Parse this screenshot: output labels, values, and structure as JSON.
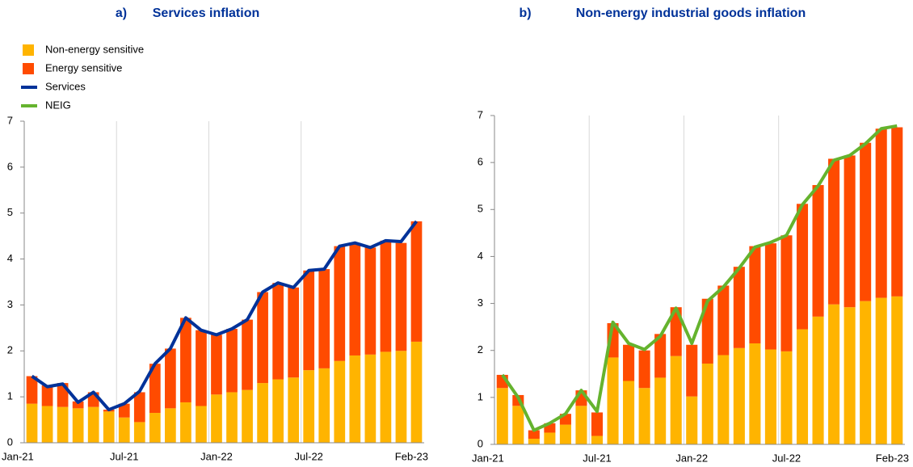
{
  "chart_data": [
    {
      "type": "bar",
      "stacked": true,
      "panel": "a)",
      "title": "Services inflation",
      "categories": [
        "Jan-21",
        null,
        null,
        null,
        null,
        null,
        "Jul-21",
        null,
        null,
        null,
        null,
        null,
        "Jan-22",
        null,
        null,
        null,
        null,
        null,
        "Jul-22",
        null,
        null,
        null,
        null,
        null,
        null,
        "Feb-23"
      ],
      "ylim": [
        0,
        7
      ],
      "yticks": [
        0,
        1,
        2,
        3,
        4,
        5,
        6,
        7
      ],
      "grid": "x",
      "legend": "top left",
      "series": [
        {
          "name": "Non-energy sensitive",
          "type": "bar",
          "color": "#ffb400",
          "values": [
            0.85,
            0.8,
            0.78,
            0.75,
            0.78,
            0.68,
            0.55,
            0.45,
            0.65,
            0.75,
            0.88,
            0.8,
            1.05,
            1.1,
            1.15,
            1.3,
            1.38,
            1.42,
            1.58,
            1.62,
            1.78,
            1.9,
            1.92,
            1.98,
            2.0,
            2.2
          ]
        },
        {
          "name": "Energy sensitive",
          "type": "bar",
          "color": "#ff4b00",
          "values": [
            0.6,
            0.45,
            0.52,
            0.15,
            0.32,
            0.04,
            0.3,
            0.65,
            1.07,
            1.3,
            1.84,
            1.65,
            1.3,
            1.38,
            1.53,
            1.98,
            2.1,
            1.96,
            2.17,
            2.16,
            2.5,
            2.45,
            2.33,
            2.42,
            2.35,
            2.62
          ]
        },
        {
          "name": "Services",
          "type": "line",
          "color": "#003299",
          "values": [
            1.45,
            1.22,
            1.28,
            0.88,
            1.1,
            0.72,
            0.85,
            1.12,
            1.72,
            2.05,
            2.72,
            2.45,
            2.35,
            2.48,
            2.68,
            3.28,
            3.48,
            3.38,
            3.75,
            3.78,
            4.28,
            4.35,
            4.25,
            4.4,
            4.38,
            4.82
          ]
        }
      ]
    },
    {
      "type": "bar",
      "stacked": true,
      "panel": "b)",
      "title": "Non-energy industrial goods inflation",
      "categories": [
        "Jan-21",
        null,
        null,
        null,
        null,
        null,
        "Jul-21",
        null,
        null,
        null,
        null,
        null,
        "Jan-22",
        null,
        null,
        null,
        null,
        null,
        "Jul-22",
        null,
        null,
        null,
        null,
        null,
        null,
        "Feb-23"
      ],
      "ylim": [
        0,
        7
      ],
      "yticks": [
        0,
        1,
        2,
        3,
        4,
        5,
        6,
        7
      ],
      "grid": "x",
      "series": [
        {
          "type": "bar",
          "color": "#ffb400",
          "values": [
            1.2,
            0.82,
            0.12,
            0.25,
            0.42,
            0.82,
            0.18,
            1.85,
            1.35,
            1.2,
            1.42,
            1.88,
            1.02,
            1.72,
            1.9,
            2.05,
            2.15,
            2.02,
            1.98,
            2.45,
            2.72,
            2.98,
            2.92,
            3.05,
            3.12,
            3.15
          ]
        },
        {
          "type": "bar",
          "color": "#ff4b00",
          "values": [
            0.28,
            0.23,
            0.18,
            0.2,
            0.23,
            0.33,
            0.5,
            0.73,
            0.77,
            0.8,
            0.93,
            1.04,
            1.1,
            1.38,
            1.48,
            1.73,
            2.07,
            2.26,
            2.47,
            2.67,
            2.8,
            3.1,
            3.23,
            3.37,
            3.6,
            3.6
          ]
        },
        {
          "name": "NEIG",
          "type": "line",
          "color": "#65b32e",
          "values": [
            1.48,
            1.0,
            0.3,
            0.45,
            0.65,
            1.15,
            0.7,
            2.6,
            2.15,
            2.02,
            2.3,
            2.9,
            2.15,
            3.05,
            3.35,
            3.75,
            4.2,
            4.3,
            4.45,
            5.1,
            5.5,
            6.05,
            6.15,
            6.4,
            6.72,
            6.78
          ]
        }
      ]
    }
  ]
}
